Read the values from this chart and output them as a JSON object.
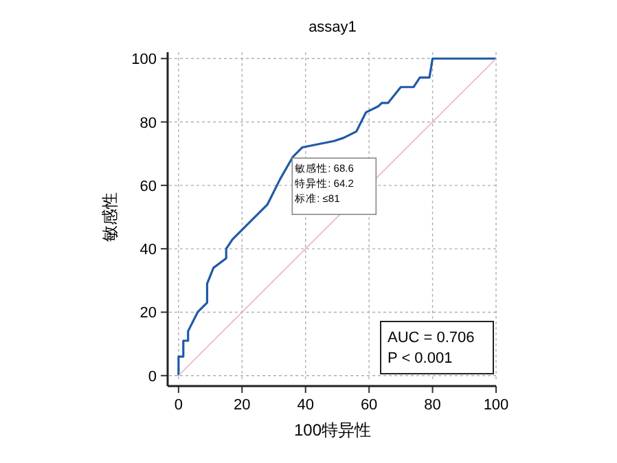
{
  "chart_data": {
    "type": "line",
    "title": "assay1",
    "xlabel": "100特异性",
    "ylabel": "敏感性",
    "xlim": [
      -3,
      100
    ],
    "ylim": [
      -2,
      102
    ],
    "xticks": [
      0,
      20,
      40,
      60,
      80,
      100
    ],
    "yticks": [
      0,
      20,
      40,
      60,
      80,
      100
    ],
    "grid": true,
    "marker": "none",
    "series": [
      {
        "color": "#1f5aa6",
        "line_style": "solid",
        "x": [
          0,
          0,
          1.5,
          1.5,
          3,
          3,
          6,
          9,
          9,
          11,
          15,
          15,
          17,
          28,
          32,
          36,
          39,
          49,
          52,
          56,
          59,
          63,
          64,
          66,
          70,
          74,
          76,
          79,
          80,
          100
        ],
        "values": [
          0,
          6,
          6,
          11,
          11,
          14,
          20,
          23,
          29,
          34,
          37,
          40,
          43,
          54,
          62,
          69,
          72,
          74,
          75,
          77,
          83,
          85,
          86,
          86,
          91,
          91,
          94,
          94,
          100,
          100
        ]
      },
      {
        "color": "#e8b4b4",
        "line_style": "solid",
        "x": [
          0,
          100
        ],
        "values": [
          0,
          100
        ]
      }
    ],
    "annotations": [
      {
        "text": "敏感性:  68.6",
        "x": 35.8,
        "y": 68.6
      },
      "特异性: 64.2",
      "标准:  ≤81",
      "AUC = 0.706",
      "P < 0.001"
    ]
  }
}
